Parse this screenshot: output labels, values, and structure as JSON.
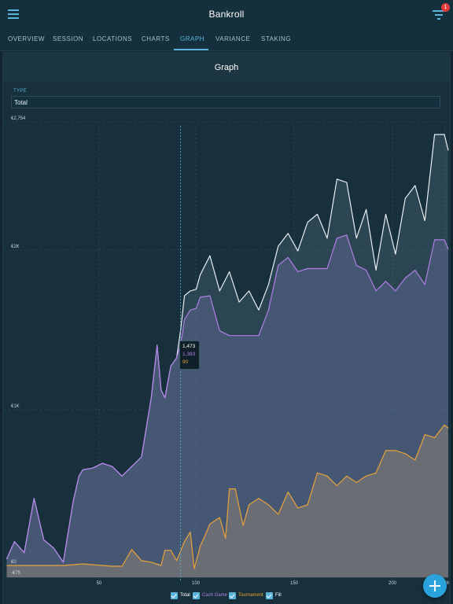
{
  "app": {
    "title": "Bankroll",
    "notification_count": "1"
  },
  "tabs": [
    {
      "label": "OVERVIEW"
    },
    {
      "label": "SESSION"
    },
    {
      "label": "LOCATIONS"
    },
    {
      "label": "CHARTS"
    },
    {
      "label": "GRAPH",
      "active": true
    },
    {
      "label": "VARIANCE"
    },
    {
      "label": "STAKING"
    }
  ],
  "card": {
    "title": "Graph"
  },
  "type_select": {
    "label": "TYPE",
    "value": "Total"
  },
  "tooltip": {
    "total": "1,473",
    "cash": "1,383",
    "tournament": "90"
  },
  "legend": [
    {
      "label": "Total",
      "color": "#ffffff"
    },
    {
      "label": "Cash Game",
      "color": "#b07ee8"
    },
    {
      "label": "Tournament",
      "color": "#f0a030"
    },
    {
      "label": "Fill",
      "color": "#ffffff"
    }
  ],
  "colors": {
    "accent": "#5ab4da",
    "total": "#e8edf2",
    "cash": "#b07ee8",
    "tournament": "#e8a23a",
    "fab": "#2aa3dc"
  },
  "icons": {
    "menu": "menu-icon",
    "filter": "filter-icon",
    "add": "plus-icon"
  },
  "chart_data": {
    "type": "line",
    "x_ticks": [
      "50",
      "100",
      "150",
      "200",
      "226"
    ],
    "y_ticks": [
      "€2,754",
      "€2K",
      "€1K",
      "€0",
      "-€75"
    ],
    "ylim": [
      -75,
      2754
    ],
    "grid": true,
    "series": [
      {
        "name": "Total",
        "x": [
          1,
          5,
          10,
          15,
          20,
          25,
          30,
          35,
          38,
          40,
          45,
          50,
          55,
          60,
          65,
          70,
          75,
          78,
          80,
          82,
          85,
          88,
          90,
          92,
          95,
          98,
          100,
          105,
          110,
          115,
          120,
          125,
          130,
          135,
          140,
          145,
          150,
          155,
          160,
          165,
          170,
          175,
          180,
          185,
          190,
          195,
          200,
          205,
          210,
          215,
          220,
          225,
          227
        ],
        "values": [
          40,
          150,
          80,
          420,
          160,
          110,
          20,
          400,
          560,
          600,
          610,
          640,
          620,
          560,
          620,
          680,
          1050,
          1380,
          1100,
          1050,
          1250,
          1300,
          1473,
          1690,
          1720,
          1730,
          1820,
          1940,
          1720,
          1840,
          1650,
          1720,
          1600,
          1760,
          2000,
          2080,
          1970,
          2150,
          2200,
          2050,
          2420,
          2400,
          2050,
          2230,
          1850,
          2200,
          1950,
          2300,
          2380,
          2160,
          2700,
          2700,
          2600
        ]
      },
      {
        "name": "Cash Game",
        "x": [
          1,
          5,
          10,
          15,
          20,
          25,
          30,
          35,
          38,
          40,
          45,
          50,
          55,
          60,
          65,
          70,
          75,
          78,
          80,
          82,
          85,
          88,
          90,
          92,
          95,
          98,
          100,
          105,
          110,
          115,
          120,
          125,
          130,
          135,
          140,
          145,
          150,
          155,
          160,
          165,
          170,
          175,
          180,
          185,
          190,
          195,
          200,
          205,
          210,
          215,
          220,
          225,
          227
        ],
        "values": [
          40,
          150,
          80,
          420,
          160,
          110,
          20,
          400,
          560,
          600,
          610,
          640,
          620,
          560,
          620,
          680,
          1050,
          1380,
          1100,
          1050,
          1250,
          1300,
          1383,
          1540,
          1600,
          1610,
          1680,
          1690,
          1470,
          1440,
          1440,
          1440,
          1440,
          1600,
          1880,
          1930,
          1840,
          1860,
          1860,
          1860,
          2050,
          2070,
          1880,
          1850,
          1720,
          1780,
          1720,
          1800,
          1850,
          1760,
          2040,
          2040,
          1980
        ]
      },
      {
        "name": "Tournament",
        "x": [
          1,
          30,
          40,
          50,
          55,
          60,
          65,
          70,
          75,
          80,
          82,
          85,
          88,
          90,
          92,
          95,
          97,
          100,
          103,
          105,
          110,
          113,
          115,
          118,
          122,
          125,
          130,
          135,
          140,
          145,
          150,
          155,
          160,
          165,
          170,
          175,
          180,
          185,
          190,
          195,
          200,
          205,
          210,
          215,
          220,
          225,
          227
        ],
        "values": [
          0,
          0,
          10,
          0,
          -5,
          -5,
          100,
          30,
          20,
          0,
          95,
          95,
          30,
          90,
          150,
          210,
          -20,
          120,
          200,
          260,
          300,
          170,
          480,
          480,
          250,
          380,
          420,
          380,
          320,
          460,
          360,
          380,
          580,
          560,
          500,
          560,
          520,
          560,
          580,
          720,
          720,
          700,
          660,
          820,
          800,
          880,
          860
        ]
      }
    ],
    "tooltip_x": 90
  }
}
